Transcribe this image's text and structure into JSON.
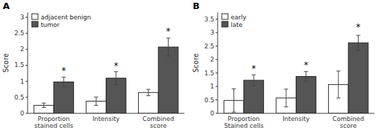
{
  "chart_data": [
    {
      "type": "bar",
      "title": "A",
      "categories": [
        "Proportion\nstained cells",
        "Intensity",
        "Combined\nscore"
      ],
      "series": [
        {
          "name": "adjacent benign",
          "color": "white",
          "values": [
            0.25,
            0.38,
            0.65
          ],
          "errors": [
            0.07,
            0.13,
            0.1
          ]
        },
        {
          "name": "tumor",
          "color": "#555555",
          "values": [
            0.98,
            1.1,
            2.07
          ],
          "errors": [
            0.15,
            0.2,
            0.28
          ]
        }
      ],
      "y_label": "Score",
      "ylim": [
        0,
        3.15
      ],
      "yticks": [
        0,
        0.5,
        1.0,
        1.5,
        2.0,
        2.5,
        3.0
      ],
      "annotations": [
        {
          "text": "*",
          "y": 1.22
        },
        {
          "text": "*",
          "y": 1.38
        },
        {
          "text": "*",
          "y": 2.45
        }
      ],
      "legend": "upper left",
      "grid": false
    },
    {
      "type": "bar",
      "title": "B",
      "categories": [
        "Proportion\nStained cells",
        "Intensity",
        "Combined\nscore"
      ],
      "series": [
        {
          "name": "early",
          "color": "white",
          "values": [
            0.48,
            0.57,
            1.07
          ],
          "errors": [
            0.43,
            0.33,
            0.5
          ]
        },
        {
          "name": "late",
          "color": "#555555",
          "values": [
            1.23,
            1.37,
            2.62
          ],
          "errors": [
            0.2,
            0.18,
            0.28
          ]
        }
      ],
      "y_label": "Score",
      "ylim": [
        0,
        3.75
      ],
      "yticks": [
        0,
        0.5,
        1.0,
        1.5,
        2.0,
        2.5,
        3.0,
        3.5
      ],
      "annotations": [
        {
          "text": "*",
          "y": 1.55
        },
        {
          "text": "*",
          "y": 1.68
        },
        {
          "text": "*",
          "y": 3.08
        }
      ],
      "legend": "upper left",
      "grid": false
    }
  ]
}
